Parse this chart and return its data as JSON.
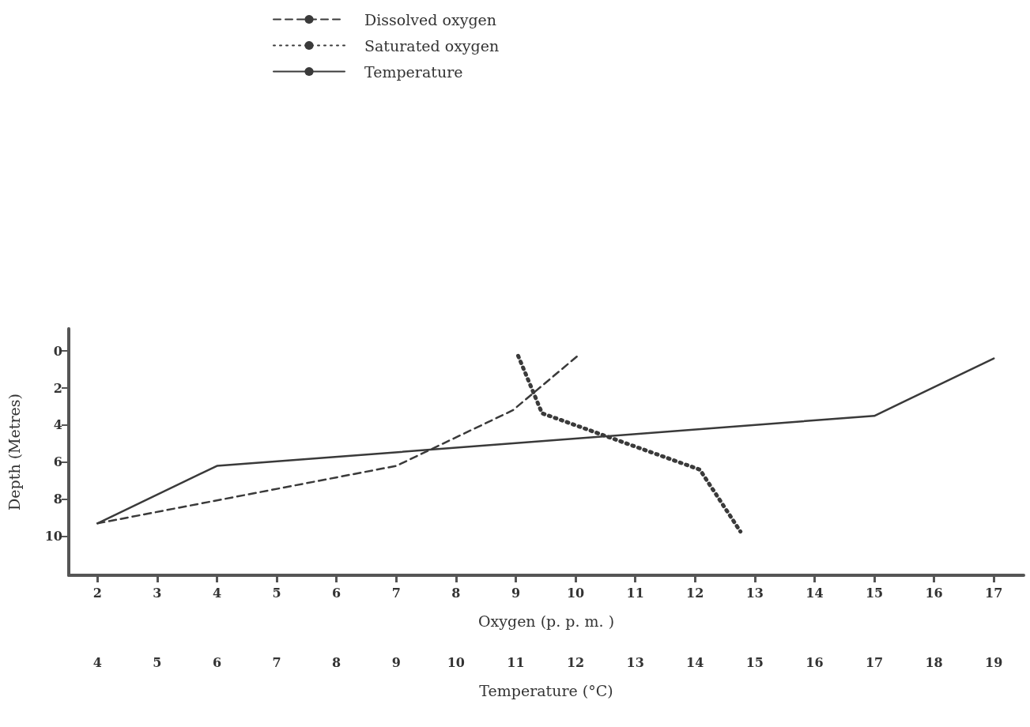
{
  "chart_data": {
    "type": "line",
    "xlabel": "Oxygen (p. p. m. )",
    "x2label": "Temperature (°C)",
    "ylabel": "Depth (Metres)",
    "xlim": [
      1.52,
      17.5
    ],
    "xticks": [
      2,
      3,
      4,
      5,
      6,
      7,
      8,
      9,
      10,
      11,
      12,
      13,
      14,
      15,
      16,
      17
    ],
    "x2lim": [
      3.52,
      19.5
    ],
    "x2ticks": [
      4,
      5,
      6,
      7,
      8,
      9,
      10,
      11,
      12,
      13,
      14,
      15,
      16,
      17,
      18,
      19
    ],
    "ylim": [
      12.1,
      -1.2
    ],
    "yticks": [
      0,
      2,
      4,
      6,
      8,
      10
    ],
    "grid": false,
    "legend": "top",
    "marker": "none",
    "series": [
      {
        "name": "Dissolved oxygen",
        "color": "#3a3a3a",
        "line_style": "dashed",
        "x": [
          2,
          7,
          8.95,
          10.06
        ],
        "values": [
          9.3,
          6.2,
          3.2,
          0.2
        ]
      },
      {
        "name": "Saturated oxygen",
        "color": "#3a3a3a",
        "line_style": "dotted",
        "x": [
          9.04,
          9.44,
          10.62,
          12.08,
          12.76
        ],
        "values": [
          0.26,
          3.36,
          4.72,
          6.4,
          9.74
        ]
      },
      {
        "name": "Temperature",
        "color": "#3a3a3a",
        "line_style": "solid",
        "axis": "x2",
        "x": [
          4,
          6,
          17,
          19
        ],
        "values": [
          9.3,
          6.2,
          3.5,
          0.4
        ]
      }
    ]
  }
}
